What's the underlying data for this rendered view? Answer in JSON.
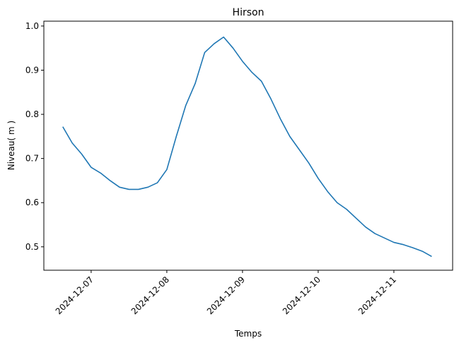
{
  "chart_data": {
    "type": "line",
    "title": "Hirson",
    "xlabel": "Temps",
    "ylabel": "Niveau( m )",
    "x": [
      "2024-12-06T15:00",
      "2024-12-06T18:00",
      "2024-12-06T21:00",
      "2024-12-07T00:00",
      "2024-12-07T03:00",
      "2024-12-07T06:00",
      "2024-12-07T09:00",
      "2024-12-07T12:00",
      "2024-12-07T15:00",
      "2024-12-07T18:00",
      "2024-12-07T21:00",
      "2024-12-08T00:00",
      "2024-12-08T03:00",
      "2024-12-08T06:00",
      "2024-12-08T09:00",
      "2024-12-08T12:00",
      "2024-12-08T15:00",
      "2024-12-08T18:00",
      "2024-12-08T21:00",
      "2024-12-09T00:00",
      "2024-12-09T03:00",
      "2024-12-09T06:00",
      "2024-12-09T09:00",
      "2024-12-09T12:00",
      "2024-12-09T15:00",
      "2024-12-09T18:00",
      "2024-12-09T21:00",
      "2024-12-10T00:00",
      "2024-12-10T03:00",
      "2024-12-10T06:00",
      "2024-12-10T09:00",
      "2024-12-10T12:00",
      "2024-12-10T15:00",
      "2024-12-10T18:00",
      "2024-12-10T21:00",
      "2024-12-11T00:00",
      "2024-12-11T03:00",
      "2024-12-11T06:00",
      "2024-12-11T09:00",
      "2024-12-11T12:00"
    ],
    "series": [
      {
        "name": "Hirson",
        "color": "#1f77b4",
        "values": [
          0.772,
          0.735,
          0.71,
          0.68,
          0.667,
          0.65,
          0.635,
          0.63,
          0.63,
          0.635,
          0.645,
          0.675,
          0.75,
          0.82,
          0.87,
          0.94,
          0.96,
          0.975,
          0.95,
          0.92,
          0.895,
          0.875,
          0.835,
          0.79,
          0.75,
          0.72,
          0.69,
          0.655,
          0.625,
          0.6,
          0.585,
          0.565,
          0.545,
          0.53,
          0.52,
          0.51,
          0.505,
          0.498,
          0.49,
          0.478
        ]
      }
    ],
    "xlim": [
      "2024-12-06T09:00",
      "2024-12-11T18:38"
    ],
    "xticks": [
      "2024-12-07",
      "2024-12-08",
      "2024-12-09",
      "2024-12-10",
      "2024-12-11"
    ],
    "ylim": [
      0.447,
      1.011
    ],
    "yticks": [
      0.5,
      0.6,
      0.7,
      0.8,
      0.9,
      {
        "value": 1.0,
        "label": "1.0"
      }
    ],
    "grid": false
  }
}
